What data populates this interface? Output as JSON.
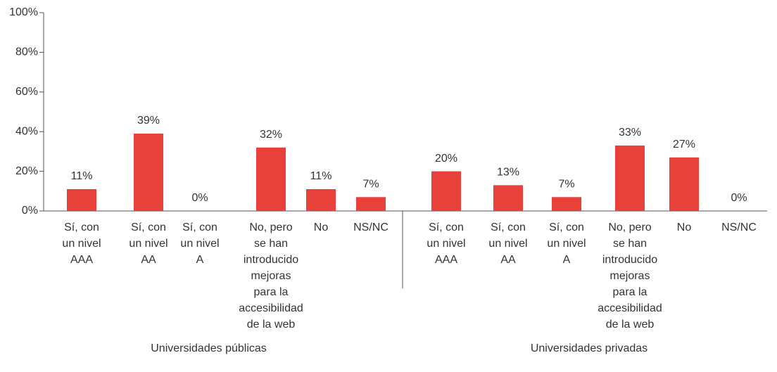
{
  "chart_data": {
    "type": "bar",
    "color": "#e8403a",
    "ylim": [
      0,
      100
    ],
    "yticks": [
      {
        "value": 0,
        "label": "0%"
      },
      {
        "value": 20,
        "label": "20%"
      },
      {
        "value": 40,
        "label": "40%"
      },
      {
        "value": 60,
        "label": "60%"
      },
      {
        "value": 80,
        "label": "80%"
      },
      {
        "value": 100,
        "label": "100%"
      }
    ],
    "groups": [
      {
        "name": "Universidades públicas",
        "categories": [
          "Sí, con un nivel AAA",
          "Sí, con un nivel AA",
          "Sí, con un nivel A",
          "No, pero se han introducido mejoras para la accesibilidad de la web",
          "No",
          "NS/NC"
        ],
        "values": [
          11,
          39,
          0,
          32,
          11,
          7
        ],
        "value_labels": [
          "11%",
          "39%",
          "0%",
          "32%",
          "11%",
          "7%"
        ]
      },
      {
        "name": "Universidades privadas",
        "categories": [
          "Sí, con un nivel AAA",
          "Sí, con un nivel AA",
          "Sí, con un nivel A",
          "No, pero se han introducido mejoras para la accesibilidad de la web",
          "No",
          "NS/NC"
        ],
        "values": [
          20,
          13,
          7,
          33,
          27,
          0
        ],
        "value_labels": [
          "20%",
          "13%",
          "7%",
          "33%",
          "27%",
          "0%"
        ]
      }
    ]
  }
}
